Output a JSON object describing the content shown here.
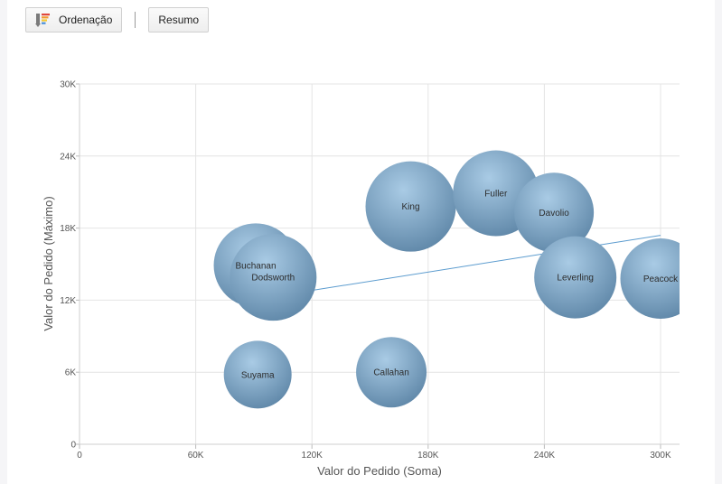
{
  "toolbar": {
    "sort_label": "Ordenação",
    "summary_label": "Resumo",
    "sort_icon": "sort-bars-icon"
  },
  "colors": {
    "bubble_light": "#a9cbe5",
    "bubble_dark": "#5f87a8",
    "trend_line": "#5c9ccf",
    "grid": "#e4e4e4"
  },
  "chart_data": {
    "type": "scatter",
    "subtype": "bubble",
    "xlabel": "Valor do Pedido (Soma)",
    "ylabel": "Valor do Pedido (Máximo)",
    "xlim": [
      0,
      300000
    ],
    "ylim": [
      0,
      30000
    ],
    "xticks": [
      {
        "value": 0,
        "label": "0"
      },
      {
        "value": 60000,
        "label": "60K"
      },
      {
        "value": 120000,
        "label": "120K"
      },
      {
        "value": 180000,
        "label": "180K"
      },
      {
        "value": 240000,
        "label": "240K"
      },
      {
        "value": 300000,
        "label": "300K"
      }
    ],
    "yticks": [
      {
        "value": 0,
        "label": "0"
      },
      {
        "value": 6000,
        "label": "6K"
      },
      {
        "value": 12000,
        "label": "12K"
      },
      {
        "value": 18000,
        "label": "18K"
      },
      {
        "value": 24000,
        "label": "24K"
      },
      {
        "value": 30000,
        "label": "30K"
      }
    ],
    "grid": true,
    "points": [
      {
        "name": "Buchanan",
        "x": 91000,
        "y": 14900,
        "size": 0.93
      },
      {
        "name": "Dodsworth",
        "x": 100000,
        "y": 13900,
        "size": 0.96
      },
      {
        "name": "Suyama",
        "x": 92000,
        "y": 5800,
        "size": 0.75
      },
      {
        "name": "Callahan",
        "x": 161000,
        "y": 6000,
        "size": 0.78
      },
      {
        "name": "King",
        "x": 171000,
        "y": 19800,
        "size": 1.0
      },
      {
        "name": "Fuller",
        "x": 215000,
        "y": 20900,
        "size": 0.95
      },
      {
        "name": "Davolio",
        "x": 245000,
        "y": 19300,
        "size": 0.88
      },
      {
        "name": "Leverling",
        "x": 256000,
        "y": 13900,
        "size": 0.91
      },
      {
        "name": "Peacock",
        "x": 300000,
        "y": 13800,
        "size": 0.89
      }
    ],
    "trendline": {
      "x": [
        100000,
        300000
      ],
      "y": [
        12300,
        17400
      ]
    }
  }
}
